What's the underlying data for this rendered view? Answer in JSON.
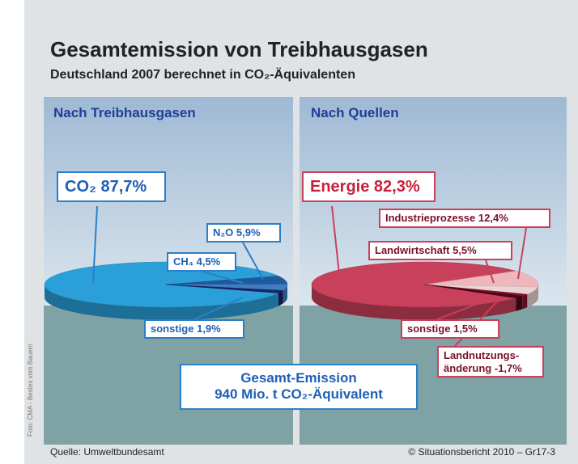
{
  "title": "Gesamtemission von Treibhausgasen",
  "subtitle": "Deutschland 2007 berechnet in CO₂-Äquivalenten",
  "chart_data": [
    {
      "type": "pie",
      "title": "Nach Treibhausgasen",
      "categories": [
        "CO₂",
        "N₂O",
        "CH₄",
        "sonstige"
      ],
      "values": [
        87.7,
        5.9,
        4.5,
        1.9
      ],
      "value_labels": [
        "87,7%",
        "5,9%",
        "4,5%",
        "1,9%"
      ],
      "colors": [
        "#2b9fd8",
        "#1f5a9e",
        "#3f7dc2",
        "#1a2466"
      ]
    },
    {
      "type": "pie",
      "title": "Nach Quellen",
      "categories": [
        "Energie",
        "Industrieprozesse",
        "Landwirtschaft",
        "sonstige",
        "Landnutzungs-änderung"
      ],
      "values": [
        82.3,
        12.4,
        5.5,
        1.5,
        -1.7
      ],
      "value_labels": [
        "82,3%",
        "12,4%",
        "5,5%",
        "1,5%",
        "-1,7%"
      ],
      "colors": [
        "#c8405a",
        "#efb6bb",
        "#ead4d4",
        "#8a1030",
        "#4a0818"
      ]
    }
  ],
  "total": {
    "title": "Gesamt-Emission",
    "text": "940 Mio. t CO₂-Äquivalent"
  },
  "source": "Quelle: Umweltbundesamt",
  "copyright": "© Situationsbericht 2010 – Gr17-3",
  "photo_credit": "Foto: CMA - Bestes vom Bauern"
}
